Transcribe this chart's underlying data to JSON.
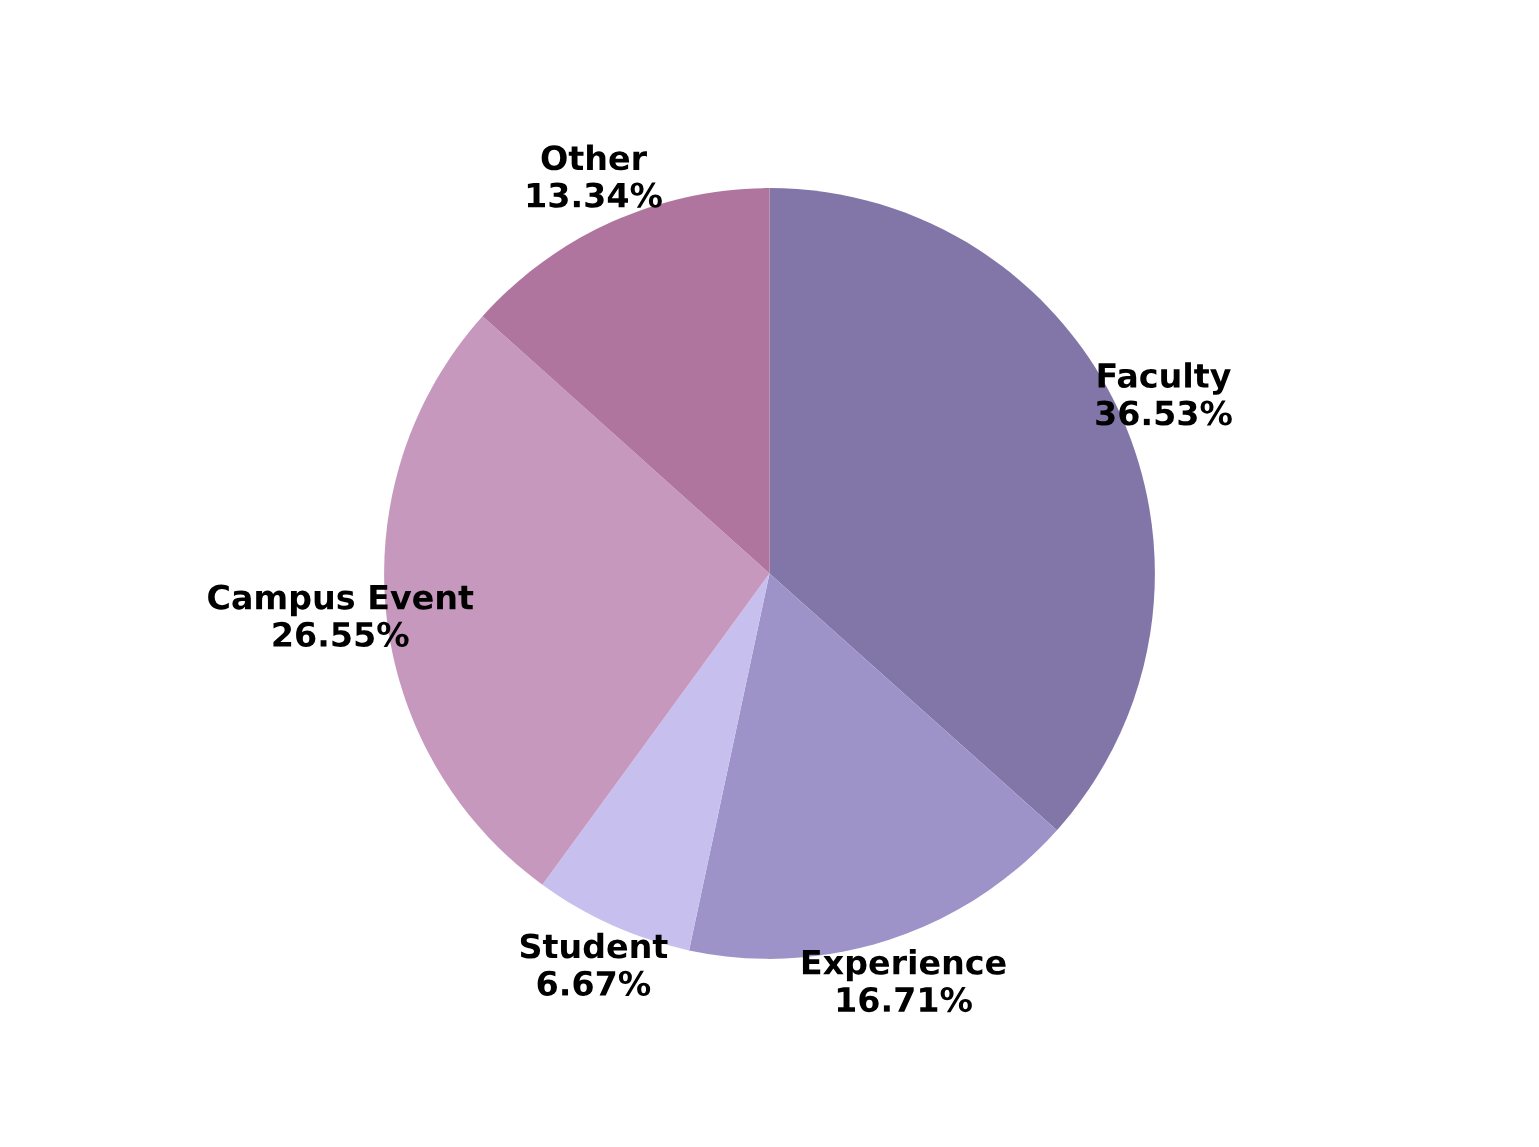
{
  "chart_data": {
    "type": "pie",
    "categories": [
      "Faculty",
      "Experience",
      "Student",
      "Campus Event",
      "Other"
    ],
    "values": [
      36.53,
      16.71,
      6.67,
      26.55,
      13.34
    ],
    "colors": [
      "#8275a8",
      "#9d93c8",
      "#c7c0ef",
      "#c798bd",
      "#b0759f"
    ],
    "value_labels": [
      "36.53%",
      "16.71%",
      "6.67%",
      "26.55%",
      "13.34%"
    ]
  }
}
